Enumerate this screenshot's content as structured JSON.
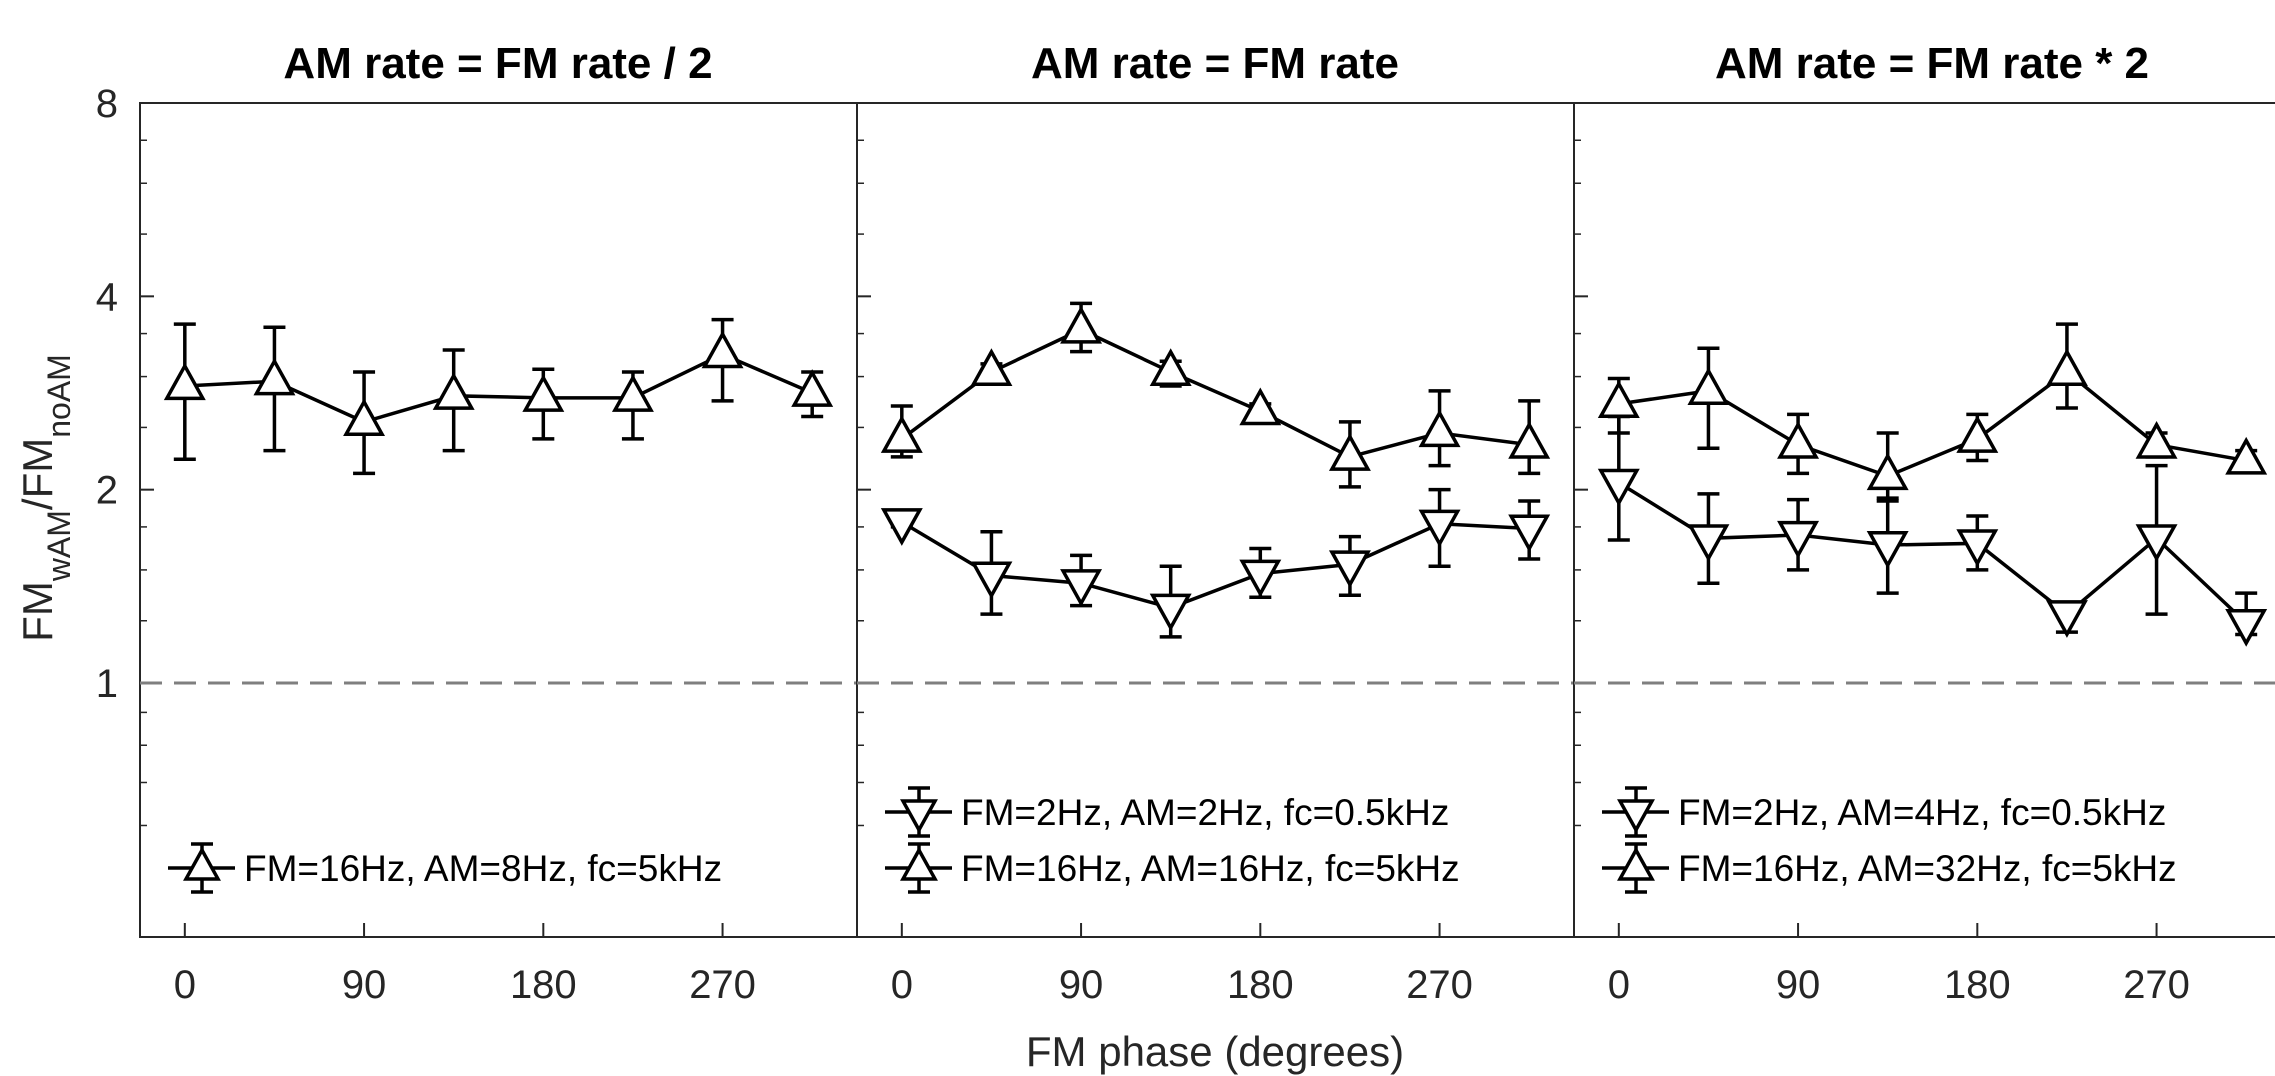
{
  "chart_data": {
    "type": "line",
    "xlabel": "FM phase (degrees)",
    "ylabel": {
      "base": "FM",
      "sub1": "wAM",
      "mid": "/FM",
      "sub2": "noAM"
    },
    "yscale": "log2",
    "ylim": [
      0.5,
      8
    ],
    "yticks": [
      1,
      2,
      4,
      8
    ],
    "yticklabels": [
      "1",
      "2",
      "4",
      "8"
    ],
    "xlim": [
      -22.5,
      337.5
    ],
    "xticks": [
      0,
      90,
      180,
      270
    ],
    "xticklabels": [
      "0",
      "90",
      "180",
      "270"
    ],
    "reference_line": {
      "y": 1,
      "style": "dashed",
      "color": "#7f7f7f"
    },
    "grid": false,
    "legend_location": "bottom",
    "panels": [
      {
        "title": "AM rate = FM rate / 2",
        "series": [
          {
            "name": "FM=16Hz, AM=8Hz, fc=5kHz",
            "marker": "triangle-up",
            "x": [
              0,
              45,
              90,
              135,
              180,
              225,
              270,
              315
            ],
            "y": [
              2.9,
              2.95,
              2.55,
              2.8,
              2.78,
              2.78,
              3.25,
              2.83
            ],
            "err_low": [
              2.23,
              2.3,
              2.12,
              2.3,
              2.4,
              2.4,
              2.75,
              2.6
            ],
            "err_high": [
              3.62,
              3.58,
              3.05,
              3.3,
              3.08,
              3.05,
              3.68,
              3.05
            ]
          }
        ]
      },
      {
        "title": "AM rate = FM rate",
        "series": [
          {
            "name": "FM=2Hz, AM=2Hz, fc=0.5kHz",
            "marker": "triangle-down",
            "x": [
              0,
              45,
              90,
              135,
              180,
              225,
              270,
              315
            ],
            "y": [
              1.78,
              1.47,
              1.43,
              1.31,
              1.48,
              1.53,
              1.77,
              1.74
            ],
            "err_low": [
              1.75,
              1.28,
              1.32,
              1.18,
              1.36,
              1.37,
              1.52,
              1.56
            ],
            "err_high": [
              1.85,
              1.72,
              1.58,
              1.52,
              1.62,
              1.69,
              2.0,
              1.92
            ]
          },
          {
            "name": "FM=16Hz, AM=16Hz, fc=5kHz",
            "marker": "triangle-up",
            "x": [
              0,
              45,
              90,
              135,
              180,
              225,
              270,
              315
            ],
            "y": [
              2.4,
              3.05,
              3.55,
              3.05,
              2.65,
              2.25,
              2.45,
              2.35
            ],
            "err_low": [
              2.25,
              2.93,
              3.28,
              2.9,
              2.58,
              2.02,
              2.18,
              2.12
            ],
            "err_high": [
              2.7,
              3.14,
              3.9,
              3.17,
              2.72,
              2.55,
              2.85,
              2.75
            ]
          }
        ]
      },
      {
        "title": "AM rate = FM rate * 2",
        "series": [
          {
            "name": "FM=2Hz, AM=4Hz, fc=0.5kHz",
            "marker": "triangle-down",
            "x": [
              0,
              45,
              90,
              135,
              180,
              225,
              270,
              315
            ],
            "y": [
              2.05,
              1.68,
              1.7,
              1.64,
              1.65,
              1.28,
              1.68,
              1.24
            ],
            "err_low": [
              1.67,
              1.43,
              1.5,
              1.38,
              1.5,
              1.2,
              1.28,
              1.19
            ],
            "err_high": [
              2.6,
              1.97,
              1.93,
              1.94,
              1.82,
              1.32,
              2.18,
              1.38
            ]
          },
          {
            "name": "FM=16Hz, AM=32Hz, fc=5kHz",
            "marker": "triangle-up",
            "x": [
              0,
              45,
              90,
              135,
              180,
              225,
              270,
              315
            ],
            "y": [
              2.72,
              2.85,
              2.35,
              2.1,
              2.4,
              3.05,
              2.35,
              2.22
            ],
            "err_low": [
              2.45,
              2.32,
              2.12,
              1.92,
              2.22,
              2.68,
              2.25,
              2.13
            ],
            "err_high": [
              2.98,
              3.32,
              2.62,
              2.45,
              2.62,
              3.62,
              2.45,
              2.3
            ]
          }
        ]
      }
    ]
  }
}
